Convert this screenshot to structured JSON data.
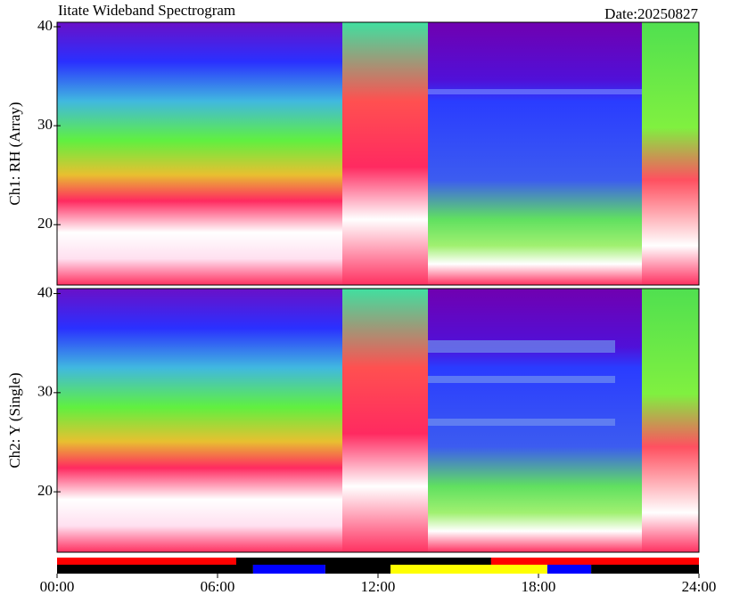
{
  "title": "Iitate Wideband Spectrogram",
  "date": "Date:20250827",
  "chart_data": [
    {
      "type": "spectrogram",
      "ylabel": "Ch1: RH (Array)",
      "xlim": [
        0,
        24
      ],
      "ylim": [
        13.9,
        40.45
      ],
      "yticks": [
        20,
        30,
        40
      ]
    },
    {
      "type": "spectrogram",
      "ylabel": "Ch2: Y (Single)",
      "xlim": [
        0,
        24
      ],
      "ylim": [
        13.9,
        40.5
      ],
      "yticks": [
        20,
        30,
        40
      ]
    },
    {
      "type": "timeline",
      "xlim": [
        0,
        24
      ],
      "xticks": [
        {
          "value": 0,
          "label": "00:00"
        },
        {
          "value": 6,
          "label": "06:00"
        },
        {
          "value": 12,
          "label": "12:00"
        },
        {
          "value": 18,
          "label": "18:00"
        },
        {
          "value": 24,
          "label": "24:00"
        }
      ],
      "rows": [
        [
          {
            "start": 0,
            "end": 6.7,
            "color": "#ff0000"
          },
          {
            "start": 6.7,
            "end": 16.23,
            "color": "#000000"
          },
          {
            "start": 16.23,
            "end": 24,
            "color": "#ff0000"
          }
        ],
        [
          {
            "start": 0,
            "end": 7.33,
            "color": "#000000"
          },
          {
            "start": 7.33,
            "end": 10.03,
            "color": "#0000ff"
          },
          {
            "start": 10.03,
            "end": 12.47,
            "color": "#000000"
          },
          {
            "start": 12.47,
            "end": 18.33,
            "color": "#ffff00"
          },
          {
            "start": 18.33,
            "end": 19.97,
            "color": "#0000ff"
          },
          {
            "start": 19.97,
            "end": 24,
            "color": "#000000"
          }
        ]
      ]
    }
  ]
}
